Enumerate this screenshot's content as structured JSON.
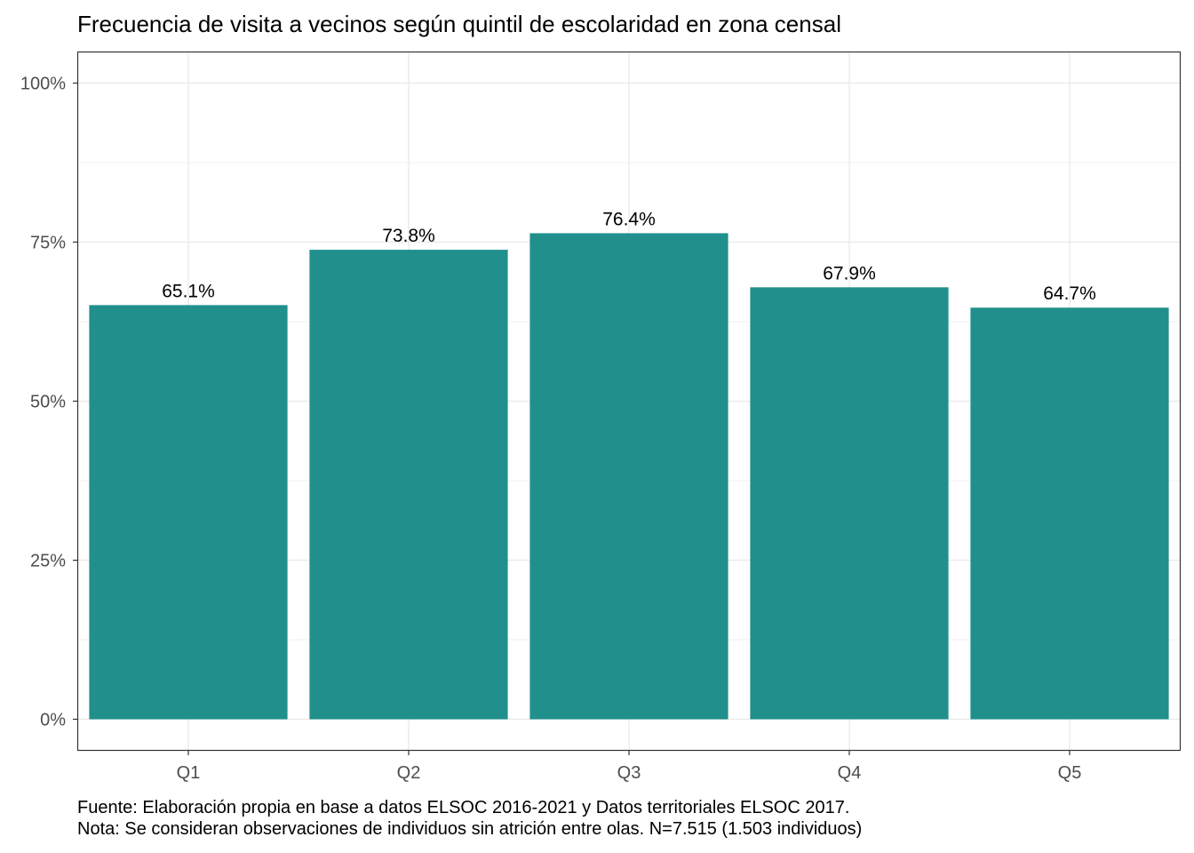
{
  "chart_data": {
    "type": "bar",
    "title": "Frecuencia de visita a vecinos según quintil de escolaridad en zona censal",
    "xlabel": "",
    "ylabel": "",
    "categories": [
      "Q1",
      "Q2",
      "Q3",
      "Q4",
      "Q5"
    ],
    "values": [
      65.1,
      73.8,
      76.4,
      67.9,
      64.7
    ],
    "value_labels": [
      "65.1%",
      "73.8%",
      "76.4%",
      "67.9%",
      "64.7%"
    ],
    "ylim": [
      0,
      105
    ],
    "y_ticks": [
      0,
      25,
      50,
      75,
      100
    ],
    "y_tick_labels": [
      "0%",
      "25%",
      "50%",
      "75%",
      "100%"
    ],
    "bar_color": "#21908C",
    "grid": true,
    "legend": "none",
    "caption": [
      "Fuente: Elaboración propia en base a datos ELSOC 2016-2021 y Datos territoriales ELSOC 2017.",
      "Nota: Se consideran observaciones de individuos sin atrición entre olas. N=7.515 (1.503 individuos)"
    ]
  }
}
